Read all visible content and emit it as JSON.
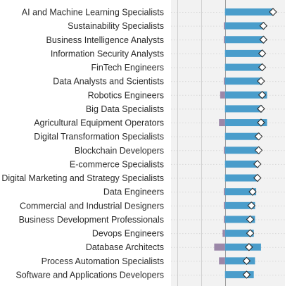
{
  "chart_data": {
    "type": "bar",
    "orientation": "horizontal",
    "categories": [
      "AI and Machine Learning Specialists",
      "Sustainability Specialists",
      "Business Intelligence Analysts",
      "Information Security Analysts",
      "FinTech Engineers",
      "Data Analysts and Scientists",
      "Robotics Engineers",
      "Big Data Specialists",
      "Agricultural Equipment Operators",
      "Digital Transformation Specialists",
      "Blockchain Developers",
      "E-commerce Specialists",
      "Digital Marketing and Strategy Specialists",
      "Data Engineers",
      "Commercial and Industrial Designers",
      "Business Development Professionals",
      "Devops Engineers",
      "Database Architects",
      "Process Automation Specialists",
      "Software and Applications Developers"
    ],
    "series": [
      {
        "color": "#4a9dcb",
        "values": [
          40,
          33,
          33,
          32,
          31,
          31,
          35,
          31,
          35,
          29,
          29,
          28,
          28,
          26,
          25,
          25,
          24,
          30,
          25,
          24
        ]
      },
      {
        "color": "#9b87a8",
        "values": [
          0,
          -1,
          -1,
          0,
          0,
          -1,
          -4,
          0,
          -5,
          0,
          -1,
          0,
          0,
          -1,
          -1,
          -1,
          -2,
          -9,
          -5,
          0
        ]
      },
      {
        "color": "#ffffff",
        "marker": "diamond",
        "values": [
          40,
          32,
          32,
          31,
          31,
          30,
          31,
          30,
          30,
          28,
          28,
          27,
          27,
          23,
          22,
          21,
          21,
          20,
          18,
          18
        ]
      }
    ],
    "xlim": [
      -45,
      50
    ],
    "gridlines_at": [
      -40,
      -20,
      0
    ],
    "grid": true,
    "title": "",
    "xlabel": "",
    "ylabel": ""
  }
}
